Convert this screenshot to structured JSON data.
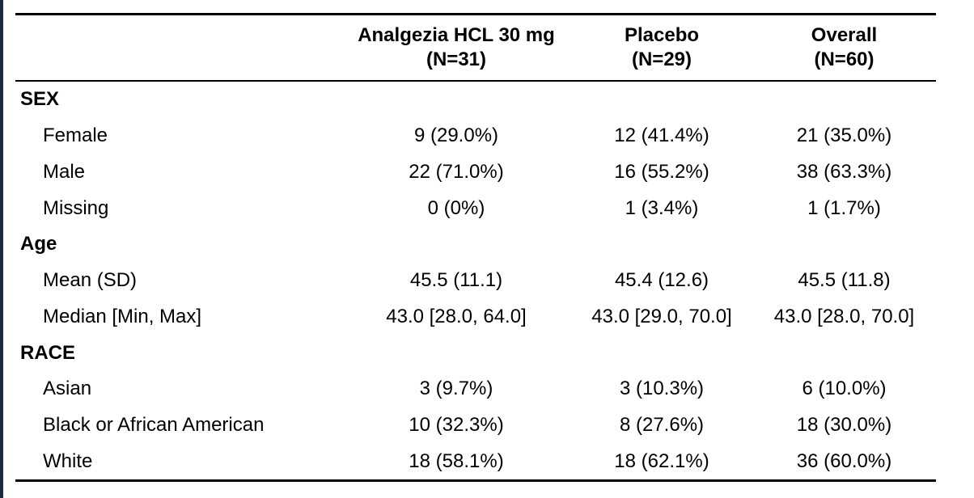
{
  "header": {
    "columns": [
      {
        "name": "Analgezia HCL 30 mg",
        "n": "(N=31)"
      },
      {
        "name": "Placebo",
        "n": "(N=29)"
      },
      {
        "name": "Overall",
        "n": "(N=60)"
      }
    ]
  },
  "sections": [
    {
      "title": "SEX",
      "rows": [
        {
          "label": "Female",
          "values": [
            "9 (29.0%)",
            "12 (41.4%)",
            "21 (35.0%)"
          ]
        },
        {
          "label": "Male",
          "values": [
            "22 (71.0%)",
            "16 (55.2%)",
            "38 (63.3%)"
          ]
        },
        {
          "label": "Missing",
          "values": [
            "0 (0%)",
            "1 (3.4%)",
            "1 (1.7%)"
          ]
        }
      ]
    },
    {
      "title": "Age",
      "rows": [
        {
          "label": "Mean (SD)",
          "values": [
            "45.5 (11.1)",
            "45.4 (12.6)",
            "45.5 (11.8)"
          ]
        },
        {
          "label": "Median [Min, Max]",
          "values": [
            "43.0 [28.0, 64.0]",
            "43.0 [29.0, 70.0]",
            "43.0 [28.0, 70.0]"
          ]
        }
      ]
    },
    {
      "title": "RACE",
      "rows": [
        {
          "label": "Asian",
          "values": [
            "3 (9.7%)",
            "3 (10.3%)",
            "6 (10.0%)"
          ]
        },
        {
          "label": "Black or African American",
          "values": [
            "10 (32.3%)",
            "8 (27.6%)",
            "18 (30.0%)"
          ]
        },
        {
          "label": "White",
          "values": [
            "18 (58.1%)",
            "18 (62.1%)",
            "36 (60.0%)"
          ]
        }
      ]
    }
  ]
}
